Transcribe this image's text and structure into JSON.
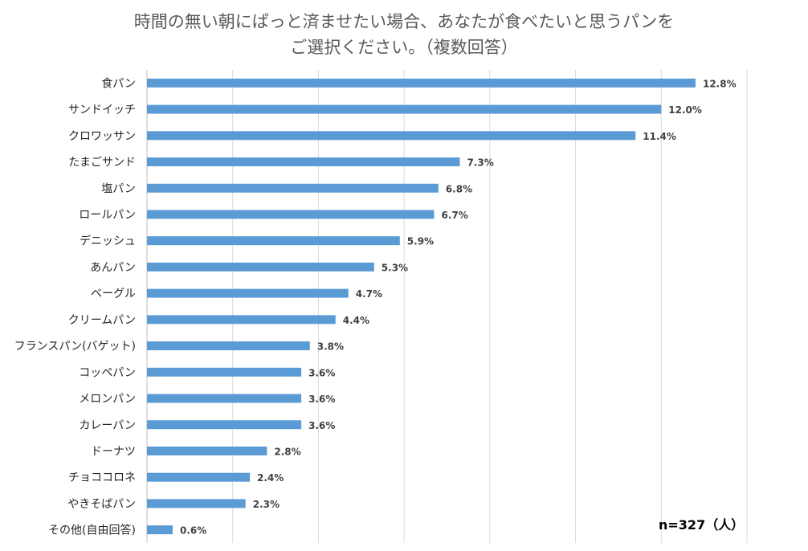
{
  "title": {
    "line1": "時間の無い朝にぱっと済ませたい場合、あなたが食べたいと思うパンを",
    "line2": "ご選択ください。（複数回答）"
  },
  "note": "n=327（人）",
  "chart_data": {
    "type": "bar",
    "orientation": "horizontal",
    "unit": "%",
    "categories": [
      "食パン",
      "サンドイッチ",
      "クロワッサン",
      "たまごサンド",
      "塩パン",
      "ロールパン",
      "デニッシュ",
      "あんパン",
      "ベーグル",
      "クリームパン",
      "フランスパン(バゲット)",
      "コッペパン",
      "メロンパン",
      "カレーパン",
      "ドーナツ",
      "チョココロネ",
      "やきそばパン",
      "その他(自由回答)"
    ],
    "values": [
      12.8,
      12.0,
      11.4,
      7.3,
      6.8,
      6.7,
      5.9,
      5.3,
      4.7,
      4.4,
      3.8,
      3.6,
      3.6,
      3.6,
      2.8,
      2.4,
      2.3,
      0.6
    ],
    "value_labels": [
      "12.8%",
      "12.0%",
      "11.4%",
      "7.3%",
      "6.8%",
      "6.7%",
      "5.9%",
      "5.3%",
      "4.7%",
      "4.4%",
      "3.8%",
      "3.6%",
      "3.6%",
      "3.6%",
      "2.8%",
      "2.4%",
      "2.3%",
      "0.6%"
    ],
    "xlim": [
      0,
      14
    ],
    "grid": true,
    "bar_color": "#5B9BD5",
    "grid_color": "#D9D9D9"
  }
}
